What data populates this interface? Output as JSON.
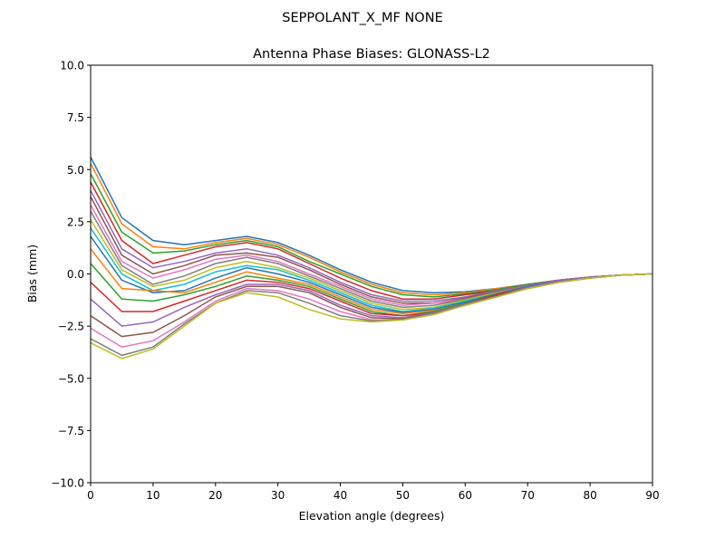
{
  "chart_data": {
    "type": "line",
    "suptitle": "SEPPOLANT_X_MF  NONE",
    "title": "Antenna Phase Biases: GLONASS-L2",
    "xlabel": "Elevation angle (degrees)",
    "ylabel": "Bias (mm)",
    "xlim": [
      0,
      90
    ],
    "ylim": [
      -10,
      10
    ],
    "xticks": [
      0,
      10,
      20,
      30,
      40,
      50,
      60,
      70,
      80,
      90
    ],
    "yticks": [
      -10.0,
      -7.5,
      -5.0,
      -2.5,
      0.0,
      2.5,
      5.0,
      7.5,
      10.0
    ],
    "ytick_labels": [
      "−10.0",
      "−7.5",
      "−5.0",
      "−2.5",
      "0.0",
      "2.5",
      "5.0",
      "7.5",
      "10.0"
    ],
    "grid": false,
    "colors": [
      "#1f77b4",
      "#ff7f0e",
      "#2ca02c",
      "#d62728",
      "#9467bd",
      "#8c564b",
      "#e377c2",
      "#7f7f7f",
      "#bcbd22",
      "#17becf"
    ],
    "x": [
      0,
      5,
      10,
      15,
      20,
      25,
      30,
      35,
      40,
      45,
      50,
      55,
      60,
      65,
      70,
      75,
      80,
      85,
      90
    ],
    "series": [
      {
        "values": [
          5.6,
          2.7,
          1.6,
          1.4,
          1.6,
          1.8,
          1.5,
          0.9,
          0.2,
          -0.4,
          -0.8,
          -0.9,
          -0.85,
          -0.7,
          -0.5,
          -0.3,
          -0.15,
          -0.05,
          0
        ]
      },
      {
        "values": [
          5.3,
          2.4,
          1.3,
          1.2,
          1.5,
          1.7,
          1.4,
          0.8,
          0.1,
          -0.5,
          -0.9,
          -1.0,
          -0.9,
          -0.7,
          -0.5,
          -0.3,
          -0.15,
          -0.05,
          0
        ]
      },
      {
        "values": [
          4.8,
          2.0,
          1.0,
          1.1,
          1.4,
          1.6,
          1.3,
          0.6,
          0.0,
          -0.6,
          -1.0,
          -1.1,
          -0.95,
          -0.75,
          -0.5,
          -0.3,
          -0.15,
          -0.05,
          0
        ]
      },
      {
        "values": [
          4.4,
          1.6,
          0.5,
          0.9,
          1.3,
          1.5,
          1.2,
          0.5,
          -0.2,
          -0.8,
          -1.2,
          -1.2,
          -1.0,
          -0.8,
          -0.55,
          -0.3,
          -0.15,
          -0.05,
          0
        ]
      },
      {
        "values": [
          4.0,
          1.2,
          0.3,
          0.6,
          1.0,
          1.2,
          0.9,
          0.3,
          -0.4,
          -1.0,
          -1.3,
          -1.3,
          -1.1,
          -0.8,
          -0.55,
          -0.3,
          -0.15,
          -0.05,
          0
        ]
      },
      {
        "values": [
          3.7,
          0.9,
          0.0,
          0.4,
          0.9,
          1.0,
          0.8,
          0.2,
          -0.5,
          -1.1,
          -1.4,
          -1.4,
          -1.15,
          -0.85,
          -0.6,
          -0.35,
          -0.15,
          -0.05,
          0
        ]
      },
      {
        "values": [
          3.3,
          0.6,
          -0.2,
          0.2,
          0.7,
          0.9,
          0.6,
          0.0,
          -0.6,
          -1.2,
          -1.5,
          -1.4,
          -1.2,
          -0.9,
          -0.6,
          -0.35,
          -0.15,
          -0.05,
          0
        ]
      },
      {
        "values": [
          3.0,
          0.4,
          -0.5,
          -0.1,
          0.5,
          0.8,
          0.5,
          -0.1,
          -0.7,
          -1.3,
          -1.6,
          -1.5,
          -1.2,
          -0.9,
          -0.6,
          -0.35,
          -0.15,
          -0.05,
          0
        ]
      },
      {
        "values": [
          2.6,
          0.2,
          -0.6,
          -0.3,
          0.3,
          0.6,
          0.3,
          -0.2,
          -0.8,
          -1.4,
          -1.7,
          -1.6,
          -1.25,
          -0.9,
          -0.6,
          -0.35,
          -0.15,
          -0.05,
          0
        ]
      },
      {
        "values": [
          2.2,
          0.0,
          -0.8,
          -0.5,
          0.1,
          0.4,
          0.2,
          -0.3,
          -0.9,
          -1.5,
          -1.8,
          -1.65,
          -1.3,
          -0.95,
          -0.6,
          -0.35,
          -0.15,
          -0.05,
          0
        ]
      },
      {
        "values": [
          1.8,
          -0.3,
          -0.9,
          -0.8,
          -0.2,
          0.3,
          0.0,
          -0.4,
          -1.0,
          -1.6,
          -1.85,
          -1.7,
          -1.35,
          -0.95,
          -0.6,
          -0.35,
          -0.15,
          -0.05,
          0
        ]
      },
      {
        "values": [
          1.2,
          -0.7,
          -0.8,
          -0.9,
          -0.4,
          0.1,
          -0.2,
          -0.5,
          -1.1,
          -1.7,
          -1.9,
          -1.75,
          -1.4,
          -1.0,
          -0.65,
          -0.35,
          -0.15,
          -0.05,
          0
        ]
      },
      {
        "values": [
          0.5,
          -1.2,
          -1.3,
          -1.0,
          -0.6,
          -0.1,
          -0.3,
          -0.6,
          -1.2,
          -1.8,
          -2.0,
          -1.8,
          -1.4,
          -1.0,
          -0.65,
          -0.35,
          -0.15,
          -0.05,
          0
        ]
      },
      {
        "values": [
          -0.4,
          -1.8,
          -1.8,
          -1.3,
          -0.8,
          -0.3,
          -0.4,
          -0.7,
          -1.3,
          -1.9,
          -2.0,
          -1.85,
          -1.45,
          -1.0,
          -0.65,
          -0.35,
          -0.15,
          -0.05,
          0
        ]
      },
      {
        "values": [
          -1.2,
          -2.5,
          -2.3,
          -1.6,
          -1.0,
          -0.5,
          -0.5,
          -0.8,
          -1.5,
          -2.0,
          -2.1,
          -1.85,
          -1.45,
          -1.05,
          -0.65,
          -0.35,
          -0.15,
          -0.05,
          0
        ]
      },
      {
        "values": [
          -2.0,
          -3.0,
          -2.8,
          -2.0,
          -1.1,
          -0.6,
          -0.6,
          -0.9,
          -1.6,
          -2.1,
          -2.15,
          -1.9,
          -1.5,
          -1.05,
          -0.7,
          -0.4,
          -0.2,
          -0.05,
          0
        ]
      },
      {
        "values": [
          -2.6,
          -3.5,
          -3.2,
          -2.3,
          -1.3,
          -0.7,
          -0.8,
          -1.2,
          -1.8,
          -2.2,
          -2.2,
          -1.9,
          -1.5,
          -1.1,
          -0.7,
          -0.4,
          -0.2,
          -0.05,
          0
        ]
      },
      {
        "values": [
          -3.1,
          -3.9,
          -3.5,
          -2.4,
          -1.4,
          -0.8,
          -0.9,
          -1.4,
          -2.0,
          -2.25,
          -2.2,
          -1.9,
          -1.5,
          -1.1,
          -0.7,
          -0.4,
          -0.2,
          -0.05,
          0
        ]
      },
      {
        "values": [
          -3.3,
          -4.05,
          -3.6,
          -2.5,
          -1.4,
          -0.9,
          -1.1,
          -1.7,
          -2.15,
          -2.3,
          -2.2,
          -1.95,
          -1.5,
          -1.1,
          -0.7,
          -0.4,
          -0.2,
          -0.05,
          0
        ]
      }
    ]
  }
}
